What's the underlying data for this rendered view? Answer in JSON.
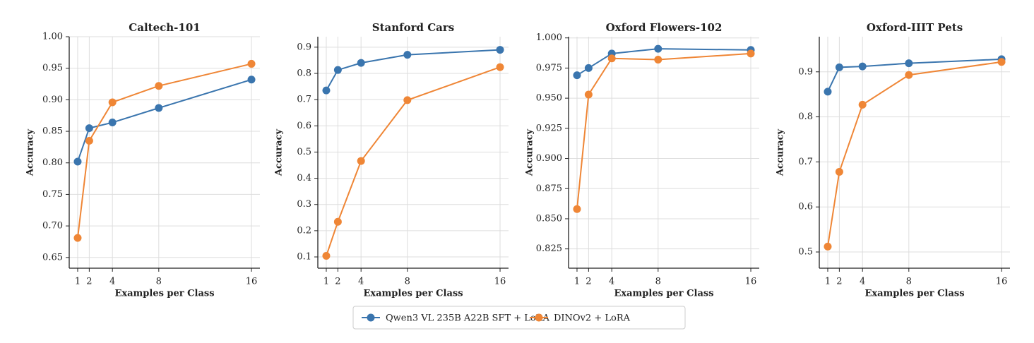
{
  "chart_data": [
    {
      "type": "line",
      "title": "Caltech-101",
      "xlabel": "Examples per Class",
      "ylabel": "Accuracy",
      "x": [
        1,
        2,
        4,
        8,
        16
      ],
      "series": [
        {
          "name": "Qwen3 VL 235B A22B SFT + LoRA",
          "color": "#3a75ae",
          "values": [
            0.802,
            0.855,
            0.864,
            0.887,
            0.932
          ]
        },
        {
          "name": "DINOv2 + LoRA",
          "color": "#ef8636",
          "values": [
            0.681,
            0.835,
            0.896,
            0.922,
            0.957
          ]
        }
      ],
      "xlim": [
        0.27,
        16.73
      ],
      "xticks": [
        1,
        2,
        4,
        8,
        16
      ],
      "ylim": [
        0.633,
        1.0
      ],
      "yticks": [
        0.65,
        {
          "value": 0.7,
          "label": "0.70"
        },
        0.75,
        {
          "value": 0.8,
          "label": "0.80"
        },
        0.85,
        {
          "value": 0.9,
          "label": "0.90"
        },
        0.95,
        {
          "value": 1.0,
          "label": "1.00"
        }
      ],
      "grid": true
    },
    {
      "type": "line",
      "title": "Stanford Cars",
      "xlabel": "Examples per Class",
      "ylabel": "Accuracy",
      "x": [
        1,
        2,
        4,
        8,
        16
      ],
      "series": [
        {
          "color": "#3a75ae",
          "values": [
            0.735,
            0.813,
            0.84,
            0.871,
            0.89
          ]
        },
        {
          "color": "#ef8636",
          "values": [
            0.104,
            0.234,
            0.466,
            0.698,
            0.824
          ]
        }
      ],
      "xlim": [
        0.27,
        16.73
      ],
      "xticks": [
        1,
        2,
        4,
        8,
        16
      ],
      "ylim": [
        0.057,
        0.94
      ],
      "yticks": [
        0.1,
        0.2,
        0.3,
        0.4,
        0.5,
        0.6,
        0.7,
        0.8,
        0.9
      ],
      "grid": true
    },
    {
      "type": "line",
      "title": "Oxford Flowers-102",
      "xlabel": "Examples per Class",
      "ylabel": "Accuracy",
      "x": [
        1,
        2,
        4,
        8,
        16
      ],
      "series": [
        {
          "color": "#3a75ae",
          "values": [
            0.969,
            0.975,
            0.987,
            0.991,
            0.99
          ]
        },
        {
          "color": "#ef8636",
          "values": [
            0.858,
            0.953,
            0.983,
            0.982,
            0.987
          ]
        }
      ],
      "xlim": [
        0.27,
        16.73
      ],
      "xticks": [
        1,
        2,
        4,
        8,
        16
      ],
      "ylim": [
        0.809,
        1.001
      ],
      "yticks": [
        0.825,
        {
          "value": 0.85,
          "label": "0.850"
        },
        0.875,
        {
          "value": 0.9,
          "label": "0.900"
        },
        0.925,
        {
          "value": 0.95,
          "label": "0.950"
        },
        0.975,
        {
          "value": 1.0,
          "label": "1.000"
        }
      ],
      "grid": true
    },
    {
      "type": "line",
      "title": "Oxford-IIIT Pets",
      "xlabel": "Examples per Class",
      "ylabel": "Accuracy",
      "x": [
        1,
        2,
        4,
        8,
        16
      ],
      "series": [
        {
          "color": "#3a75ae",
          "values": [
            0.856,
            0.91,
            0.912,
            0.919,
            0.928
          ]
        },
        {
          "color": "#ef8636",
          "values": [
            0.512,
            0.678,
            0.827,
            0.893,
            0.922
          ]
        }
      ],
      "xlim": [
        0.27,
        16.73
      ],
      "xticks": [
        1,
        2,
        4,
        8,
        16
      ],
      "ylim": [
        0.464,
        0.978
      ],
      "yticks": [
        0.5,
        0.6,
        0.7,
        0.8,
        0.9
      ],
      "grid": true
    }
  ]
}
